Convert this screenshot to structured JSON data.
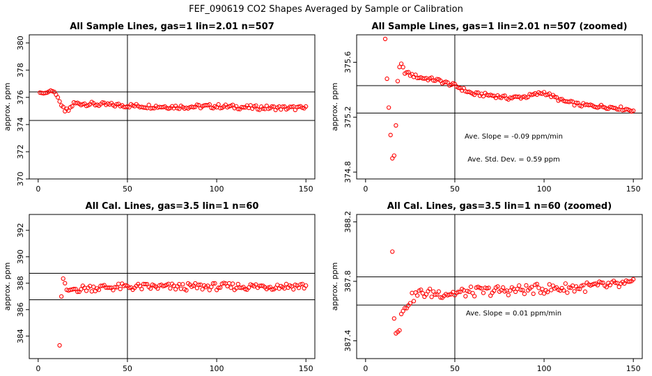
{
  "main_title": "FEF_090619  CO2 Shapes Averaged by Sample or Calibration",
  "chart_data": [
    {
      "type": "scatter",
      "title": "All Sample Lines, gas=1 lin=2.01 n=507",
      "ylabel": "approx. ppm",
      "xlim": [
        -5,
        155
      ],
      "ylim": [
        370,
        380.6
      ],
      "xticks": [
        0,
        50,
        100,
        150
      ],
      "yticks": [
        370,
        372,
        374,
        376,
        378,
        380
      ],
      "vline": 50,
      "hlines": [
        376.4,
        374.3
      ],
      "annotations": [],
      "color": "#ff0000",
      "points": {
        "x_start": 1,
        "x_end": 150,
        "y_anchor_x": [
          1,
          3,
          5,
          7,
          9,
          11,
          13,
          15,
          17,
          19,
          20,
          25,
          30,
          40,
          60,
          80,
          100,
          120,
          150
        ],
        "y_anchor_y": [
          376.35,
          376.3,
          376.35,
          376.5,
          376.4,
          376.0,
          375.4,
          375.0,
          375.05,
          375.4,
          375.55,
          375.55,
          375.5,
          375.45,
          375.35,
          375.3,
          375.35,
          375.25,
          375.2
        ]
      }
    },
    {
      "type": "scatter",
      "title": "All Sample Lines, gas=1 lin=2.01 n=507 (zoomed)",
      "ylabel": "approx. ppm",
      "xlim": [
        -5,
        155
      ],
      "ylim": [
        374.75,
        375.8
      ],
      "xticks": [
        0,
        50,
        100,
        150
      ],
      "yticks": [
        374.8,
        375.2,
        375.6
      ],
      "vline": 50,
      "hlines": [
        375.43,
        375.23
      ],
      "annotations": [
        "Ave. Slope = -0.09  ppm/min",
        "Ave. Std. Dev. = 0.59  ppm"
      ],
      "color": "#ff0000",
      "points": {
        "x_start": 11,
        "x_end": 150,
        "y_anchor_x": [
          11,
          12,
          13,
          14,
          15,
          16,
          17,
          18,
          19,
          20,
          22,
          25,
          30,
          40,
          50,
          60,
          70,
          80,
          90,
          100,
          110,
          120,
          130,
          140,
          150
        ],
        "y_anchor_y": [
          375.77,
          375.48,
          375.27,
          375.07,
          374.9,
          374.92,
          375.14,
          375.45,
          375.56,
          375.58,
          375.53,
          375.51,
          375.49,
          375.47,
          375.43,
          375.37,
          375.36,
          375.34,
          375.35,
          375.38,
          375.32,
          375.29,
          375.28,
          375.27,
          375.25
        ]
      }
    },
    {
      "type": "scatter",
      "title": "All Cal. Lines, gas=3.5 lin=1 n=60",
      "ylabel": "approx. ppm",
      "xlim": [
        -5,
        155
      ],
      "ylim": [
        382.3,
        393.2
      ],
      "xticks": [
        0,
        50,
        100,
        150
      ],
      "yticks": [
        384,
        386,
        388,
        390,
        392
      ],
      "vline": 50,
      "hlines": [
        388.75,
        386.75
      ],
      "annotations": [],
      "color": "#ff0000",
      "points": {
        "x_start": 12,
        "x_end": 150,
        "y_anchor_x": [
          12,
          13,
          14,
          15,
          16,
          17,
          18,
          20,
          25,
          30,
          40,
          60,
          80,
          100,
          120,
          150
        ],
        "y_anchor_y": [
          383.3,
          387.0,
          388.35,
          388.0,
          387.5,
          387.45,
          387.5,
          387.55,
          387.6,
          387.65,
          387.7,
          387.72,
          387.72,
          387.75,
          387.75,
          387.8
        ]
      }
    },
    {
      "type": "scatter",
      "title": "All Cal. Lines, gas=3.5 lin=1 n=60 (zoomed)",
      "ylabel": "approx. ppm",
      "xlim": [
        -5,
        155
      ],
      "ylim": [
        387.28,
        388.25
      ],
      "xticks": [
        0,
        50,
        100,
        150
      ],
      "yticks": [
        387.4,
        387.8,
        388.2
      ],
      "vline": 50,
      "hlines": [
        387.83,
        387.64
      ],
      "annotations": [
        "Ave. Slope =  0.01  ppm/min"
      ],
      "color": "#ff0000",
      "points": {
        "x_start": 15,
        "x_end": 150,
        "y_anchor_x": [
          15,
          16,
          17,
          18,
          19,
          20,
          22,
          25,
          30,
          40,
          50,
          60,
          80,
          100,
          120,
          150
        ],
        "y_anchor_y": [
          388.0,
          387.55,
          387.45,
          387.46,
          387.47,
          387.58,
          387.62,
          387.68,
          387.72,
          387.72,
          387.72,
          387.73,
          387.74,
          387.75,
          387.76,
          387.78
        ]
      }
    }
  ]
}
